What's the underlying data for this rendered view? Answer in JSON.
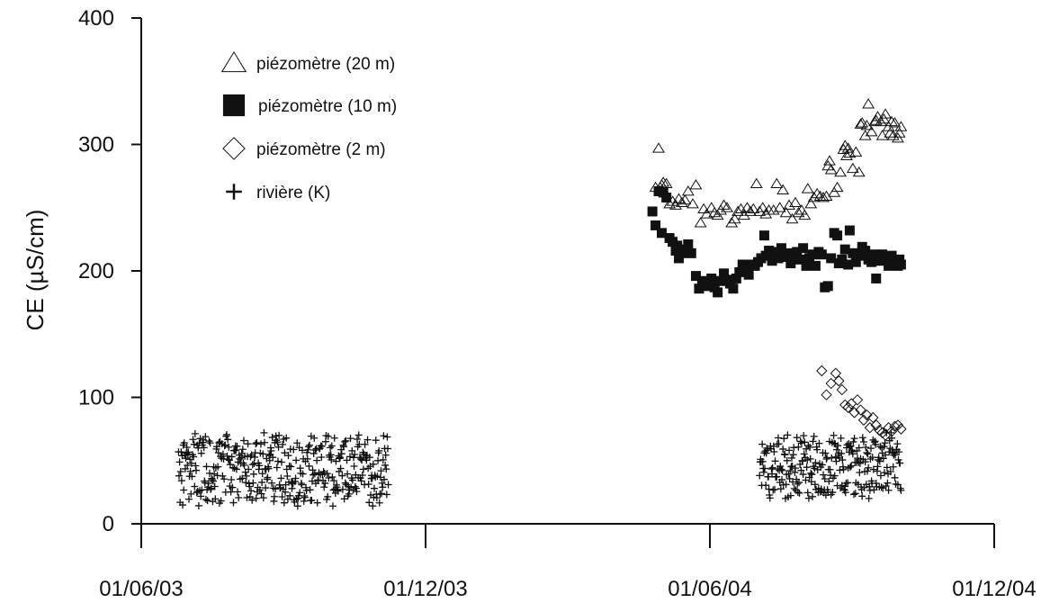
{
  "chart_data": {
    "type": "scatter",
    "title": "",
    "xlabel": "",
    "ylabel": "CE (µS/cm)",
    "ylim": [
      0,
      400
    ],
    "xlim": [
      "2003-06-01",
      "2004-12-01"
    ],
    "yticks": [
      "0",
      "100",
      "200",
      "300",
      "400"
    ],
    "xticks": [
      {
        "date": "2003-06-01",
        "label": "01/06/03"
      },
      {
        "date": "2003-12-01",
        "label": "01/12/03"
      },
      {
        "date": "2004-06-01",
        "label": "01/06/04"
      },
      {
        "date": "2004-12-01",
        "label": "01/12/04"
      }
    ],
    "grid": false,
    "legend_position": "top-left",
    "series": [
      {
        "name": "piézomètre (20 m)",
        "marker": "triangle-open",
        "points": [
          [
            "2004-04-27",
            266
          ],
          [
            "2004-04-29",
            297
          ],
          [
            "2004-04-30",
            266
          ],
          [
            "2004-05-01",
            268
          ],
          [
            "2004-05-02",
            270
          ],
          [
            "2004-05-03",
            262
          ],
          [
            "2004-05-04",
            269
          ],
          [
            "2004-05-06",
            253
          ],
          [
            "2004-05-08",
            255
          ],
          [
            "2004-05-10",
            252
          ],
          [
            "2004-05-12",
            257
          ],
          [
            "2004-05-14",
            254
          ],
          [
            "2004-05-16",
            256
          ],
          [
            "2004-05-18",
            263
          ],
          [
            "2004-05-21",
            253
          ],
          [
            "2004-05-23",
            268
          ],
          [
            "2004-05-26",
            238
          ],
          [
            "2004-05-28",
            249
          ],
          [
            "2004-05-30",
            245
          ],
          [
            "2004-06-02",
            250
          ],
          [
            "2004-06-04",
            246
          ],
          [
            "2004-06-06",
            244
          ],
          [
            "2004-06-08",
            248
          ],
          [
            "2004-06-10",
            252
          ],
          [
            "2004-06-12",
            250
          ],
          [
            "2004-06-15",
            238
          ],
          [
            "2004-06-17",
            241
          ],
          [
            "2004-06-19",
            247
          ],
          [
            "2004-06-21",
            249
          ],
          [
            "2004-06-23",
            244
          ],
          [
            "2004-06-25",
            250
          ],
          [
            "2004-06-27",
            247
          ],
          [
            "2004-06-29",
            249
          ],
          [
            "2004-07-01",
            269
          ],
          [
            "2004-07-03",
            247
          ],
          [
            "2004-07-05",
            250
          ],
          [
            "2004-07-07",
            245
          ],
          [
            "2004-07-09",
            248
          ],
          [
            "2004-07-12",
            248
          ],
          [
            "2004-07-14",
            269
          ],
          [
            "2004-07-16",
            250
          ],
          [
            "2004-07-18",
            264
          ],
          [
            "2004-07-20",
            246
          ],
          [
            "2004-07-22",
            252
          ],
          [
            "2004-07-24",
            241
          ],
          [
            "2004-07-26",
            254
          ],
          [
            "2004-07-28",
            246
          ],
          [
            "2004-07-30",
            248
          ],
          [
            "2004-08-01",
            244
          ],
          [
            "2004-08-03",
            265
          ],
          [
            "2004-08-05",
            253
          ],
          [
            "2004-08-07",
            258
          ],
          [
            "2004-08-09",
            261
          ],
          [
            "2004-08-11",
            259
          ],
          [
            "2004-08-13",
            258
          ],
          [
            "2004-08-15",
            259
          ],
          [
            "2004-08-16",
            283
          ],
          [
            "2004-08-17",
            287
          ],
          [
            "2004-08-18",
            280
          ],
          [
            "2004-08-20",
            262
          ],
          [
            "2004-08-22",
            266
          ],
          [
            "2004-08-24",
            278
          ],
          [
            "2004-08-26",
            296
          ],
          [
            "2004-08-27",
            299
          ],
          [
            "2004-08-28",
            291
          ],
          [
            "2004-08-29",
            297
          ],
          [
            "2004-08-30",
            293
          ],
          [
            "2004-09-01",
            281
          ],
          [
            "2004-09-03",
            294
          ],
          [
            "2004-09-05",
            278
          ],
          [
            "2004-09-06",
            316
          ],
          [
            "2004-09-07",
            317
          ],
          [
            "2004-09-09",
            307
          ],
          [
            "2004-09-10",
            315
          ],
          [
            "2004-09-11",
            332
          ],
          [
            "2004-09-13",
            310
          ],
          [
            "2004-09-15",
            318
          ],
          [
            "2004-09-16",
            319
          ],
          [
            "2004-09-17",
            322
          ],
          [
            "2004-09-19",
            318
          ],
          [
            "2004-09-20",
            307
          ],
          [
            "2004-09-21",
            320
          ],
          [
            "2004-09-22",
            324
          ],
          [
            "2004-09-24",
            314
          ],
          [
            "2004-09-25",
            309
          ],
          [
            "2004-09-26",
            318
          ],
          [
            "2004-09-27",
            307
          ],
          [
            "2004-09-28",
            317
          ],
          [
            "2004-09-30",
            305
          ],
          [
            "2004-10-01",
            309
          ],
          [
            "2004-10-02",
            314
          ]
        ]
      },
      {
        "name": "piézomètre (10 m)",
        "marker": "square-filled",
        "points": [
          [
            "2004-04-25",
            247
          ],
          [
            "2004-04-27",
            236
          ],
          [
            "2004-04-29",
            263
          ],
          [
            "2004-05-01",
            230
          ],
          [
            "2004-05-02",
            262
          ],
          [
            "2004-05-04",
            258
          ],
          [
            "2004-05-06",
            226
          ],
          [
            "2004-05-08",
            223
          ],
          [
            "2004-05-10",
            216
          ],
          [
            "2004-05-11",
            220
          ],
          [
            "2004-05-12",
            210
          ],
          [
            "2004-05-14",
            214
          ],
          [
            "2004-05-16",
            217
          ],
          [
            "2004-05-18",
            221
          ],
          [
            "2004-05-20",
            214
          ],
          [
            "2004-05-23",
            196
          ],
          [
            "2004-05-25",
            186
          ],
          [
            "2004-05-27",
            192
          ],
          [
            "2004-05-29",
            189
          ],
          [
            "2004-05-31",
            188
          ],
          [
            "2004-06-02",
            194
          ],
          [
            "2004-06-04",
            187
          ],
          [
            "2004-06-06",
            183
          ],
          [
            "2004-06-08",
            192
          ],
          [
            "2004-06-10",
            198
          ],
          [
            "2004-06-12",
            193
          ],
          [
            "2004-06-14",
            190
          ],
          [
            "2004-06-16",
            186
          ],
          [
            "2004-06-18",
            194
          ],
          [
            "2004-06-20",
            199
          ],
          [
            "2004-06-22",
            205
          ],
          [
            "2004-06-24",
            201
          ],
          [
            "2004-06-26",
            197
          ],
          [
            "2004-06-28",
            205
          ],
          [
            "2004-06-30",
            204
          ],
          [
            "2004-07-02",
            207
          ],
          [
            "2004-07-04",
            210
          ],
          [
            "2004-07-06",
            228
          ],
          [
            "2004-07-07",
            212
          ],
          [
            "2004-07-09",
            216
          ],
          [
            "2004-07-11",
            208
          ],
          [
            "2004-07-13",
            215
          ],
          [
            "2004-07-15",
            210
          ],
          [
            "2004-07-17",
            218
          ],
          [
            "2004-07-19",
            211
          ],
          [
            "2004-07-21",
            214
          ],
          [
            "2004-07-23",
            206
          ],
          [
            "2004-07-25",
            213
          ],
          [
            "2004-07-27",
            215
          ],
          [
            "2004-07-29",
            209
          ],
          [
            "2004-07-31",
            218
          ],
          [
            "2004-08-02",
            204
          ],
          [
            "2004-08-04",
            210
          ],
          [
            "2004-08-06",
            213
          ],
          [
            "2004-08-08",
            204
          ],
          [
            "2004-08-10",
            215
          ],
          [
            "2004-08-12",
            213
          ],
          [
            "2004-08-14",
            187
          ],
          [
            "2004-08-16",
            188
          ],
          [
            "2004-08-18",
            210
          ],
          [
            "2004-08-20",
            230
          ],
          [
            "2004-08-22",
            228
          ],
          [
            "2004-08-23",
            206
          ],
          [
            "2004-08-25",
            209
          ],
          [
            "2004-08-27",
            217
          ],
          [
            "2004-08-29",
            205
          ],
          [
            "2004-08-30",
            232
          ],
          [
            "2004-09-01",
            214
          ],
          [
            "2004-09-03",
            207
          ],
          [
            "2004-09-05",
            212
          ],
          [
            "2004-09-07",
            219
          ],
          [
            "2004-09-09",
            216
          ],
          [
            "2004-09-11",
            209
          ],
          [
            "2004-09-13",
            207
          ],
          [
            "2004-09-15",
            213
          ],
          [
            "2004-09-16",
            194
          ],
          [
            "2004-09-18",
            208
          ],
          [
            "2004-09-20",
            213
          ],
          [
            "2004-09-22",
            210
          ],
          [
            "2004-09-24",
            204
          ],
          [
            "2004-09-26",
            212
          ],
          [
            "2004-09-28",
            206
          ],
          [
            "2004-09-30",
            204
          ],
          [
            "2004-10-01",
            209
          ],
          [
            "2004-10-02",
            205
          ]
        ]
      },
      {
        "name": "piézomètre (2 m)",
        "marker": "diamond-open",
        "points": [
          [
            "2004-08-12",
            121
          ],
          [
            "2004-08-15",
            102
          ],
          [
            "2004-08-18",
            111
          ],
          [
            "2004-08-21",
            119
          ],
          [
            "2004-08-23",
            113
          ],
          [
            "2004-08-25",
            106
          ],
          [
            "2004-08-27",
            94
          ],
          [
            "2004-08-29",
            92
          ],
          [
            "2004-08-31",
            95
          ],
          [
            "2004-09-02",
            88
          ],
          [
            "2004-09-04",
            98
          ],
          [
            "2004-09-06",
            90
          ],
          [
            "2004-09-08",
            82
          ],
          [
            "2004-09-10",
            86
          ],
          [
            "2004-09-12",
            76
          ],
          [
            "2004-09-14",
            84
          ],
          [
            "2004-09-16",
            78
          ],
          [
            "2004-09-18",
            74
          ],
          [
            "2004-09-20",
            72
          ],
          [
            "2004-09-22",
            70
          ],
          [
            "2004-09-24",
            76
          ],
          [
            "2004-09-26",
            73
          ],
          [
            "2004-09-28",
            77
          ],
          [
            "2004-09-30",
            78
          ],
          [
            "2004-10-02",
            75
          ]
        ]
      },
      {
        "name": "rivière (K)",
        "marker": "plus",
        "generated_ranges": [
          {
            "start": "2003-06-25",
            "end": "2003-11-07",
            "min": 14,
            "max": 72
          },
          {
            "start": "2004-07-03",
            "end": "2004-10-02",
            "min": 20,
            "max": 72
          }
        ]
      }
    ]
  }
}
